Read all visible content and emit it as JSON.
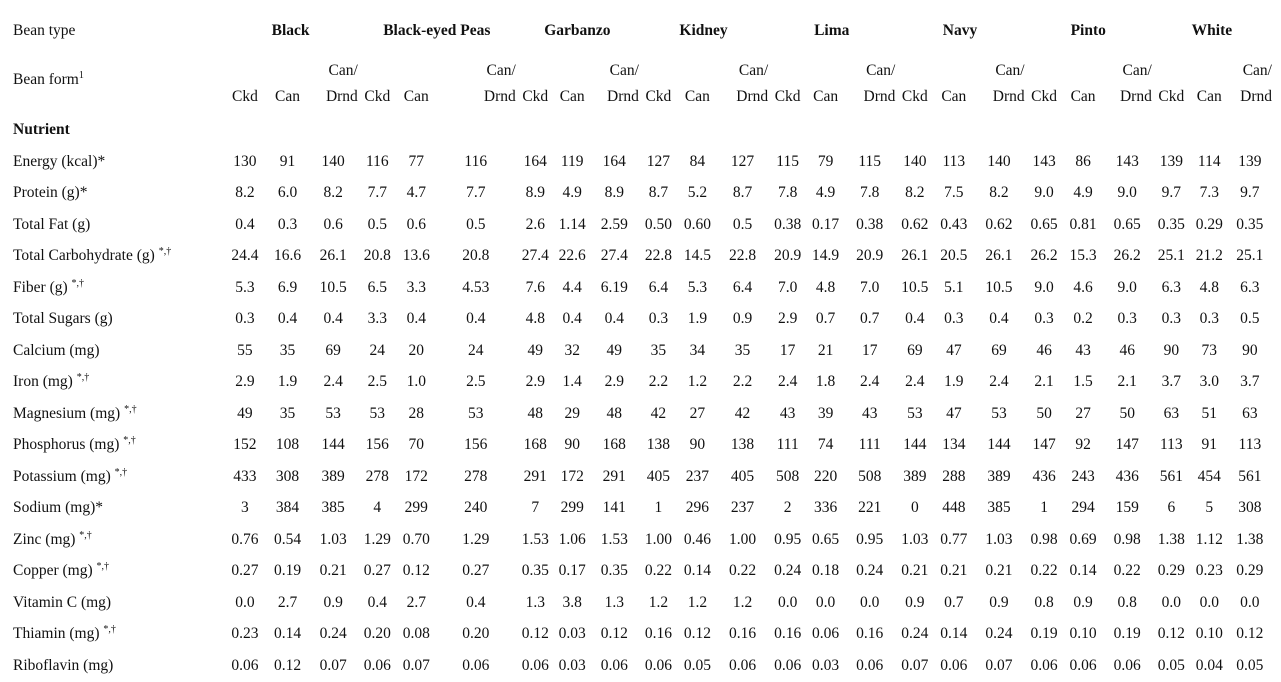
{
  "header": {
    "bean_type_label": "Bean type",
    "bean_form_label": "Bean form",
    "bean_form_sup": "1",
    "nutrient_label": "Nutrient",
    "groups": [
      "Black",
      "Black-eyed Peas",
      "Garbanzo",
      "Kidney",
      "Lima",
      "Navy",
      "Pinto",
      "White"
    ],
    "can_slash": "Can/",
    "forms": [
      "Ckd",
      "Can",
      "Drnd"
    ]
  },
  "rows": [
    {
      "name": "Energy (kcal)*",
      "sup": "",
      "values": [
        "130",
        "91",
        "140",
        "116",
        "77",
        "116",
        "164",
        "119",
        "164",
        "127",
        "84",
        "127",
        "115",
        "79",
        "115",
        "140",
        "113",
        "140",
        "143",
        "86",
        "143",
        "139",
        "114",
        "139"
      ]
    },
    {
      "name": "Protein (g)*",
      "sup": "",
      "values": [
        "8.2",
        "6.0",
        "8.2",
        "7.7",
        "4.7",
        "7.7",
        "8.9",
        "4.9",
        "8.9",
        "8.7",
        "5.2",
        "8.7",
        "7.8",
        "4.9",
        "7.8",
        "8.2",
        "7.5",
        "8.2",
        "9.0",
        "4.9",
        "9.0",
        "9.7",
        "7.3",
        "9.7"
      ]
    },
    {
      "name": "Total Fat (g)",
      "sup": "",
      "values": [
        "0.4",
        "0.3",
        "0.6",
        "0.5",
        "0.6",
        "0.5",
        "2.6",
        "1.14",
        "2.59",
        "0.50",
        "0.60",
        "0.5",
        "0.38",
        "0.17",
        "0.38",
        "0.62",
        "0.43",
        "0.62",
        "0.65",
        "0.81",
        "0.65",
        "0.35",
        "0.29",
        "0.35"
      ]
    },
    {
      "name": "Total Carbohydrate (g)",
      "sup": "*,†",
      "values": [
        "24.4",
        "16.6",
        "26.1",
        "20.8",
        "13.6",
        "20.8",
        "27.4",
        "22.6",
        "27.4",
        "22.8",
        "14.5",
        "22.8",
        "20.9",
        "14.9",
        "20.9",
        "26.1",
        "20.5",
        "26.1",
        "26.2",
        "15.3",
        "26.2",
        "25.1",
        "21.2",
        "25.1"
      ]
    },
    {
      "name": "Fiber (g)",
      "sup": "*,†",
      "values": [
        "5.3",
        "6.9",
        "10.5",
        "6.5",
        "3.3",
        "4.53",
        "7.6",
        "4.4",
        "6.19",
        "6.4",
        "5.3",
        "6.4",
        "7.0",
        "4.8",
        "7.0",
        "10.5",
        "5.1",
        "10.5",
        "9.0",
        "4.6",
        "9.0",
        "6.3",
        "4.8",
        "6.3"
      ]
    },
    {
      "name": "Total Sugars (g)",
      "sup": "",
      "values": [
        "0.3",
        "0.4",
        "0.4",
        "3.3",
        "0.4",
        "0.4",
        "4.8",
        "0.4",
        "0.4",
        "0.3",
        "1.9",
        "0.9",
        "2.9",
        "0.7",
        "0.7",
        "0.4",
        "0.3",
        "0.4",
        "0.3",
        "0.2",
        "0.3",
        "0.3",
        "0.3",
        "0.5"
      ]
    },
    {
      "name": "Calcium (mg)",
      "sup": "",
      "values": [
        "55",
        "35",
        "69",
        "24",
        "20",
        "24",
        "49",
        "32",
        "49",
        "35",
        "34",
        "35",
        "17",
        "21",
        "17",
        "69",
        "47",
        "69",
        "46",
        "43",
        "46",
        "90",
        "73",
        "90"
      ]
    },
    {
      "name": "Iron (mg)",
      "sup": "*,†",
      "values": [
        "2.9",
        "1.9",
        "2.4",
        "2.5",
        "1.0",
        "2.5",
        "2.9",
        "1.4",
        "2.9",
        "2.2",
        "1.2",
        "2.2",
        "2.4",
        "1.8",
        "2.4",
        "2.4",
        "1.9",
        "2.4",
        "2.1",
        "1.5",
        "2.1",
        "3.7",
        "3.0",
        "3.7"
      ]
    },
    {
      "name": "Magnesium (mg)",
      "sup": "*,†",
      "values": [
        "49",
        "35",
        "53",
        "53",
        "28",
        "53",
        "48",
        "29",
        "48",
        "42",
        "27",
        "42",
        "43",
        "39",
        "43",
        "53",
        "47",
        "53",
        "50",
        "27",
        "50",
        "63",
        "51",
        "63"
      ]
    },
    {
      "name": "Phosphorus (mg)",
      "sup": "*,†",
      "values": [
        "152",
        "108",
        "144",
        "156",
        "70",
        "156",
        "168",
        "90",
        "168",
        "138",
        "90",
        "138",
        "111",
        "74",
        "111",
        "144",
        "134",
        "144",
        "147",
        "92",
        "147",
        "113",
        "91",
        "113"
      ]
    },
    {
      "name": "Potassium (mg)",
      "sup": "*,†",
      "values": [
        "433",
        "308",
        "389",
        "278",
        "172",
        "278",
        "291",
        "172",
        "291",
        "405",
        "237",
        "405",
        "508",
        "220",
        "508",
        "389",
        "288",
        "389",
        "436",
        "243",
        "436",
        "561",
        "454",
        "561"
      ]
    },
    {
      "name": "Sodium (mg)*",
      "sup": "",
      "values": [
        "3",
        "384",
        "385",
        "4",
        "299",
        "240",
        "7",
        "299",
        "141",
        "1",
        "296",
        "237",
        "2",
        "336",
        "221",
        "0",
        "448",
        "385",
        "1",
        "294",
        "159",
        "6",
        "5",
        "308"
      ]
    },
    {
      "name": "Zinc (mg)",
      "sup": "*,†",
      "values": [
        "0.76",
        "0.54",
        "1.03",
        "1.29",
        "0.70",
        "1.29",
        "1.53",
        "1.06",
        "1.53",
        "1.00",
        "0.46",
        "1.00",
        "0.95",
        "0.65",
        "0.95",
        "1.03",
        "0.77",
        "1.03",
        "0.98",
        "0.69",
        "0.98",
        "1.38",
        "1.12",
        "1.38"
      ]
    },
    {
      "name": "Copper (mg)",
      "sup": "*,†",
      "values": [
        "0.27",
        "0.19",
        "0.21",
        "0.27",
        "0.12",
        "0.27",
        "0.35",
        "0.17",
        "0.35",
        "0.22",
        "0.14",
        "0.22",
        "0.24",
        "0.18",
        "0.24",
        "0.21",
        "0.21",
        "0.21",
        "0.22",
        "0.14",
        "0.22",
        "0.29",
        "0.23",
        "0.29"
      ]
    },
    {
      "name": "Vitamin C (mg)",
      "sup": "",
      "values": [
        "0.0",
        "2.7",
        "0.9",
        "0.4",
        "2.7",
        "0.4",
        "1.3",
        "3.8",
        "1.3",
        "1.2",
        "1.2",
        "1.2",
        "0.0",
        "0.0",
        "0.0",
        "0.9",
        "0.7",
        "0.9",
        "0.8",
        "0.9",
        "0.8",
        "0.0",
        "0.0",
        "0.0"
      ]
    },
    {
      "name": "Thiamin (mg)",
      "sup": "*,†",
      "values": [
        "0.23",
        "0.14",
        "0.24",
        "0.20",
        "0.08",
        "0.20",
        "0.12",
        "0.03",
        "0.12",
        "0.16",
        "0.12",
        "0.16",
        "0.16",
        "0.06",
        "0.16",
        "0.24",
        "0.14",
        "0.24",
        "0.19",
        "0.10",
        "0.19",
        "0.12",
        "0.10",
        "0.12"
      ]
    },
    {
      "name": "Riboflavin (mg)",
      "sup": "",
      "values": [
        "0.06",
        "0.12",
        "0.07",
        "0.06",
        "0.07",
        "0.06",
        "0.06",
        "0.03",
        "0.06",
        "0.06",
        "0.05",
        "0.06",
        "0.06",
        "0.03",
        "0.06",
        "0.07",
        "0.06",
        "0.07",
        "0.06",
        "0.06",
        "0.06",
        "0.05",
        "0.04",
        "0.05"
      ]
    }
  ]
}
